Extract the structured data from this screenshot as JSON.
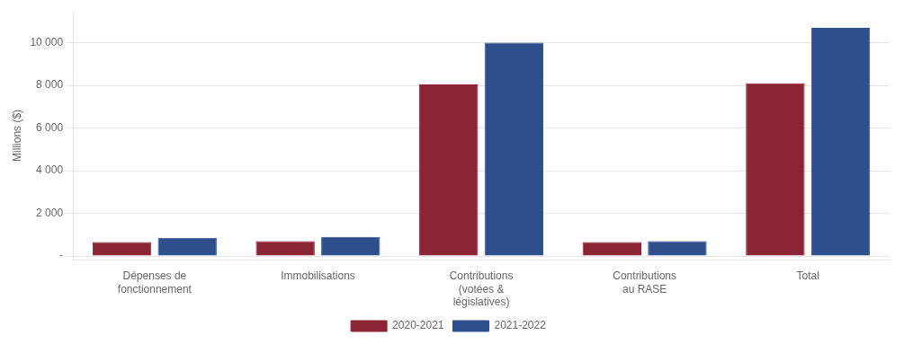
{
  "chart_data": {
    "type": "bar",
    "categories": [
      "Dépenses de\nfonctionnement",
      "Immobilisations",
      "Contributions\n(votées &\nlégislatives)",
      "Contributions\nau RASE",
      "Total"
    ],
    "series": [
      {
        "name": "2020-2021",
        "color": "#8B2535",
        "values": [
          650,
          700,
          8050,
          650,
          8100
        ]
      },
      {
        "name": "2021-2022",
        "color": "#2E4F8C",
        "values": [
          850,
          900,
          10000,
          700,
          10700
        ]
      }
    ],
    "ylabel": "Millions ($)",
    "ylim": [
      -200,
      11500
    ],
    "yticks": [
      {
        "value": 0,
        "label": "-"
      },
      {
        "value": 2000,
        "label": "2 000"
      },
      {
        "value": 4000,
        "label": "4 000"
      },
      {
        "value": 6000,
        "label": "6 000"
      },
      {
        "value": 8000,
        "label": "8 000"
      },
      {
        "value": 10000,
        "label": "10 000"
      }
    ],
    "grid": true,
    "legend": "bottom"
  }
}
